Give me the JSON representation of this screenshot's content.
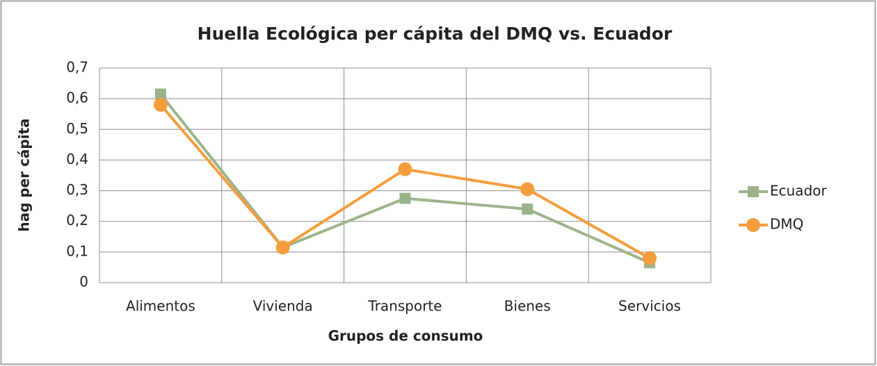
{
  "chart_data": {
    "type": "line",
    "title": "Huella Ecológica per cápita del DMQ vs. Ecuador",
    "x_label": "Grupos de consumo",
    "y_label": "hag per cápita",
    "categories": [
      "Alimentos",
      "Vivienda",
      "Transporte",
      "Bienes",
      "Servicios"
    ],
    "series": [
      {
        "name": "Ecuador",
        "color": "#9bb38a",
        "marker": "square",
        "values": [
          0.615,
          0.115,
          0.275,
          0.24,
          0.065
        ]
      },
      {
        "name": "DMQ",
        "color": "#f59d3d",
        "marker": "circle",
        "values": [
          0.58,
          0.115,
          0.37,
          0.305,
          0.08
        ]
      }
    ],
    "ylim": [
      0,
      0.7
    ],
    "yticks": [
      0,
      {
        "value": 0.1,
        "label": "0,1"
      },
      {
        "value": 0.2,
        "label": "0,2"
      },
      {
        "value": 0.3,
        "label": "0,3"
      },
      {
        "value": 0.4,
        "label": "0,4"
      },
      {
        "value": 0.5,
        "label": "0,5"
      },
      {
        "value": 0.6,
        "label": "0,6"
      },
      {
        "value": 0.7,
        "label": "0,7"
      }
    ],
    "grid": true,
    "legend": "right"
  }
}
